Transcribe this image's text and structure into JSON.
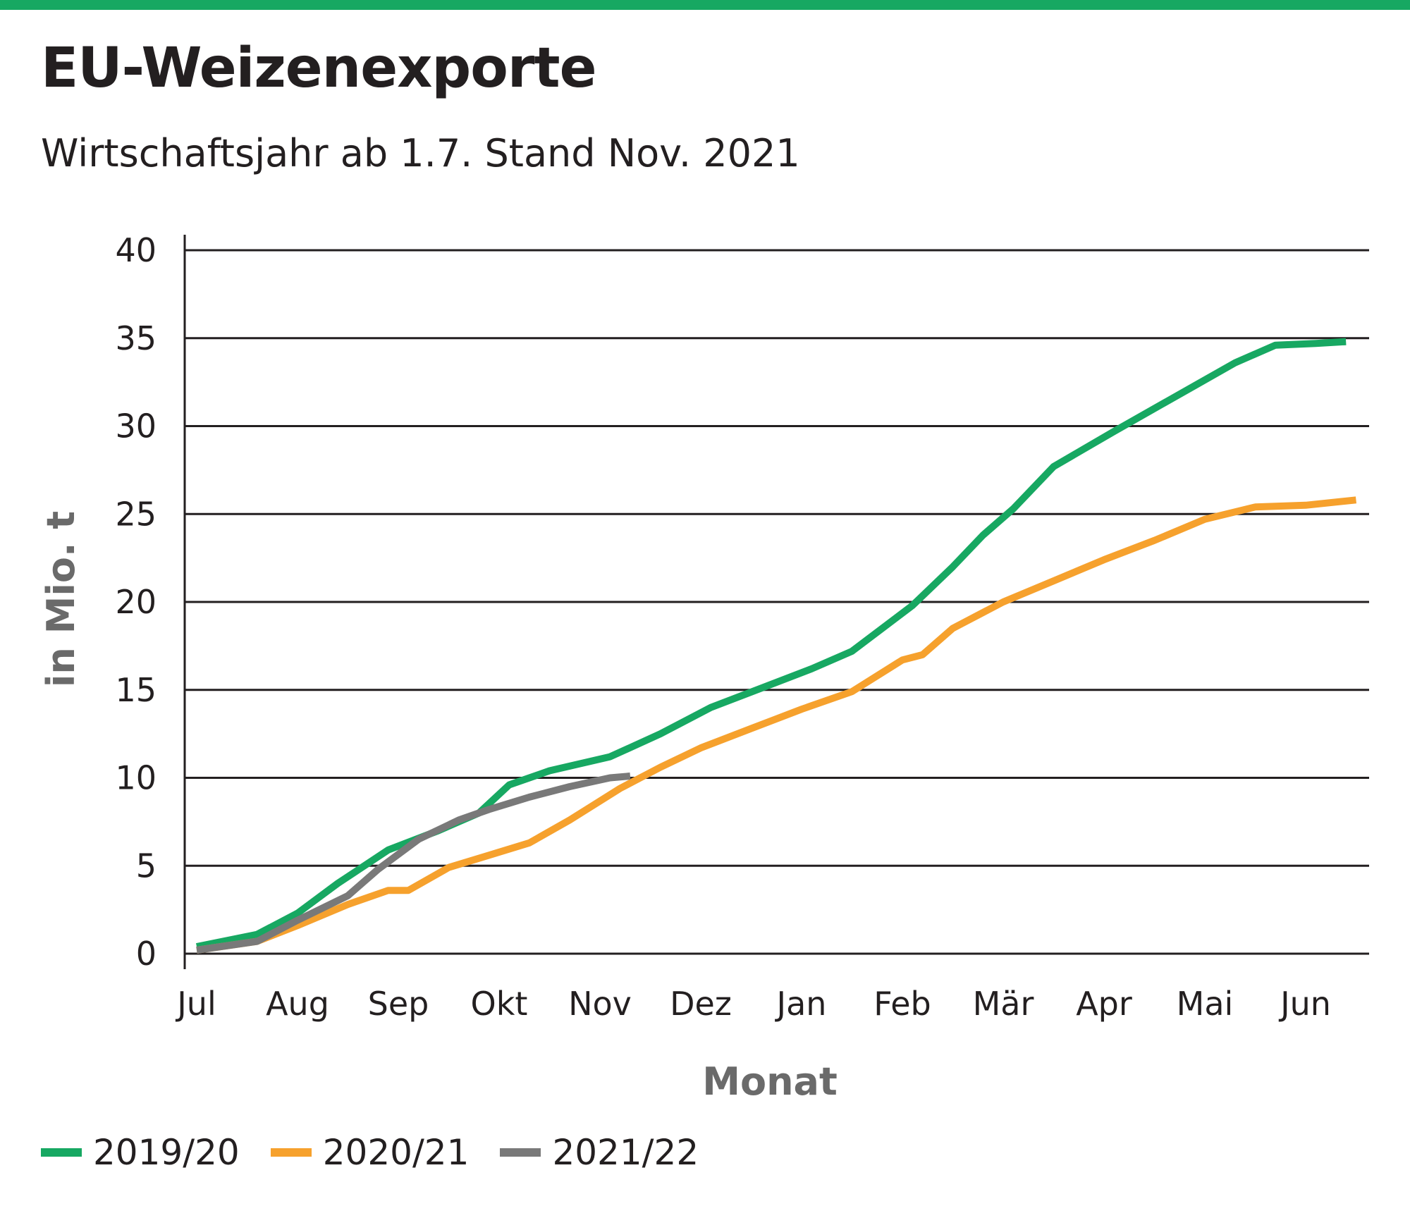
{
  "header": {
    "title": "EU-Weizenexporte",
    "subtitle": "Wirtschaftsjahr ab 1.7. Stand Nov. 2021"
  },
  "colors": {
    "accent_bar": "#17a862",
    "grid": "#231f20"
  },
  "chart_data": {
    "type": "line",
    "xlabel": "Monat",
    "ylabel": "in Mio. t",
    "categories": [
      "Jul",
      "Aug",
      "Sep",
      "Okt",
      "Nov",
      "Dez",
      "Jan",
      "Feb",
      "Mär",
      "Apr",
      "Mai",
      "Jun"
    ],
    "yticks": [
      "0",
      "5",
      "10",
      "15",
      "20",
      "25",
      "30",
      "35",
      "40"
    ],
    "ylim": [
      0,
      40
    ],
    "grid": true,
    "legend_position": "bottom-left",
    "series": [
      {
        "name": "2019/20",
        "color": "#17a862",
        "x": [
          0,
          0.6,
          1.0,
          1.4,
          1.9,
          2.4,
          2.8,
          3.1,
          3.5,
          4.1,
          4.6,
          5.1,
          5.6,
          6.1,
          6.5,
          7.1,
          7.5,
          7.8,
          8.1,
          8.5,
          9.1,
          9.5,
          9.9,
          10.3,
          10.7,
          11.1,
          11.4
        ],
        "values": [
          0.4,
          1.1,
          2.3,
          4.0,
          5.9,
          7.0,
          8.0,
          9.6,
          10.4,
          11.2,
          12.5,
          14.0,
          15.1,
          16.2,
          17.2,
          19.8,
          22.0,
          23.8,
          25.3,
          27.7,
          29.7,
          31.0,
          32.3,
          33.6,
          34.6,
          34.7,
          34.8
        ]
      },
      {
        "name": "2020/21",
        "color": "#f6a12d",
        "x": [
          0,
          0.6,
          1.0,
          1.5,
          1.9,
          2.1,
          2.5,
          2.9,
          3.3,
          3.7,
          4.2,
          4.6,
          5.0,
          5.5,
          6.0,
          6.5,
          7.0,
          7.2,
          7.5,
          8.0,
          8.5,
          9.0,
          9.5,
          10.0,
          10.5,
          11.0,
          11.5
        ],
        "values": [
          0.2,
          0.7,
          1.6,
          2.8,
          3.6,
          3.6,
          4.9,
          5.6,
          6.3,
          7.6,
          9.4,
          10.6,
          11.7,
          12.8,
          13.9,
          14.9,
          16.7,
          17.0,
          18.5,
          20.0,
          21.2,
          22.4,
          23.5,
          24.7,
          25.4,
          25.5,
          25.8
        ]
      },
      {
        "name": "2021/22",
        "color": "#797979",
        "x": [
          0,
          0.6,
          1.0,
          1.5,
          1.8,
          2.2,
          2.6,
          2.9,
          3.3,
          3.7,
          4.1,
          4.3
        ],
        "values": [
          0.2,
          0.7,
          1.9,
          3.3,
          4.8,
          6.5,
          7.6,
          8.2,
          8.9,
          9.5,
          10.0,
          10.1
        ]
      }
    ]
  }
}
